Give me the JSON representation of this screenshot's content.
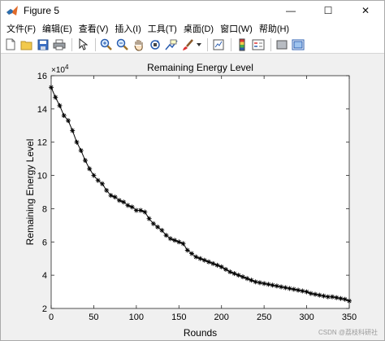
{
  "window": {
    "title": "Figure 5",
    "controls": {
      "minimize": "—",
      "maximize": "☐",
      "close": "✕"
    }
  },
  "menubar": {
    "items": [
      {
        "label": "文件(F)"
      },
      {
        "label": "编辑(E)"
      },
      {
        "label": "查看(V)"
      },
      {
        "label": "插入(I)"
      },
      {
        "label": "工具(T)"
      },
      {
        "label": "桌面(D)"
      },
      {
        "label": "窗口(W)"
      },
      {
        "label": "帮助(H)"
      }
    ]
  },
  "toolbar": {
    "icons": [
      "new-figure-icon",
      "open-file-icon",
      "save-icon",
      "print-icon",
      "edit-plot-arrow-icon",
      "zoom-in-icon",
      "zoom-out-icon",
      "pan-hand-icon",
      "rotate-3d-icon",
      "data-cursor-icon",
      "brush-icon",
      "link-plot-icon",
      "insert-colorbar-icon",
      "insert-legend-icon",
      "hide-plot-tools-icon",
      "show-plot-tools-icon"
    ]
  },
  "colors": {
    "axes_bg": "#ffffff",
    "figure_bg": "#f0f0f0",
    "line": "#000000"
  },
  "chart_data": {
    "type": "line",
    "title": "Remaining Energy Level",
    "xlabel": "Rounds",
    "ylabel": "Remaining Energy Level",
    "y_exponent_label": "×10",
    "y_exponent_power": "4",
    "xlim": [
      0,
      350
    ],
    "ylim": [
      2,
      16
    ],
    "xticks": [
      "0",
      "50",
      "100",
      "150",
      "200",
      "250",
      "300",
      "350"
    ],
    "yticks": [
      "2",
      "4",
      "6",
      "8",
      "10",
      "12",
      "14",
      "16"
    ],
    "grid": false,
    "marker": "star",
    "series": [
      {
        "x": [
          0,
          5,
          10,
          15,
          20,
          25,
          30,
          35,
          40,
          45,
          50,
          55,
          60,
          65,
          70,
          75,
          80,
          85,
          90,
          95,
          100,
          105,
          110,
          115,
          120,
          125,
          130,
          135,
          140,
          145,
          150,
          155,
          160,
          165,
          170,
          175,
          180,
          185,
          190,
          195,
          200,
          205,
          210,
          215,
          220,
          225,
          230,
          235,
          240,
          245,
          250,
          255,
          260,
          265,
          270,
          275,
          280,
          285,
          290,
          295,
          300,
          305,
          310,
          315,
          320,
          325,
          330,
          335,
          340,
          345,
          350
        ],
        "y": [
          15.3,
          14.7,
          14.2,
          13.6,
          13.3,
          12.7,
          12.0,
          11.5,
          10.9,
          10.4,
          10.0,
          9.7,
          9.5,
          9.1,
          8.8,
          8.7,
          8.5,
          8.4,
          8.2,
          8.1,
          7.9,
          7.9,
          7.8,
          7.4,
          7.1,
          6.9,
          6.7,
          6.4,
          6.2,
          6.1,
          6.0,
          5.9,
          5.5,
          5.3,
          5.1,
          5.0,
          4.9,
          4.8,
          4.7,
          4.6,
          4.5,
          4.35,
          4.2,
          4.1,
          4.0,
          3.9,
          3.8,
          3.7,
          3.6,
          3.55,
          3.5,
          3.45,
          3.4,
          3.35,
          3.3,
          3.25,
          3.2,
          3.15,
          3.1,
          3.05,
          3.0,
          2.9,
          2.85,
          2.8,
          2.75,
          2.7,
          2.7,
          2.65,
          2.6,
          2.55,
          2.45
        ]
      }
    ]
  },
  "watermark": "CSDN @荔枝科研社"
}
